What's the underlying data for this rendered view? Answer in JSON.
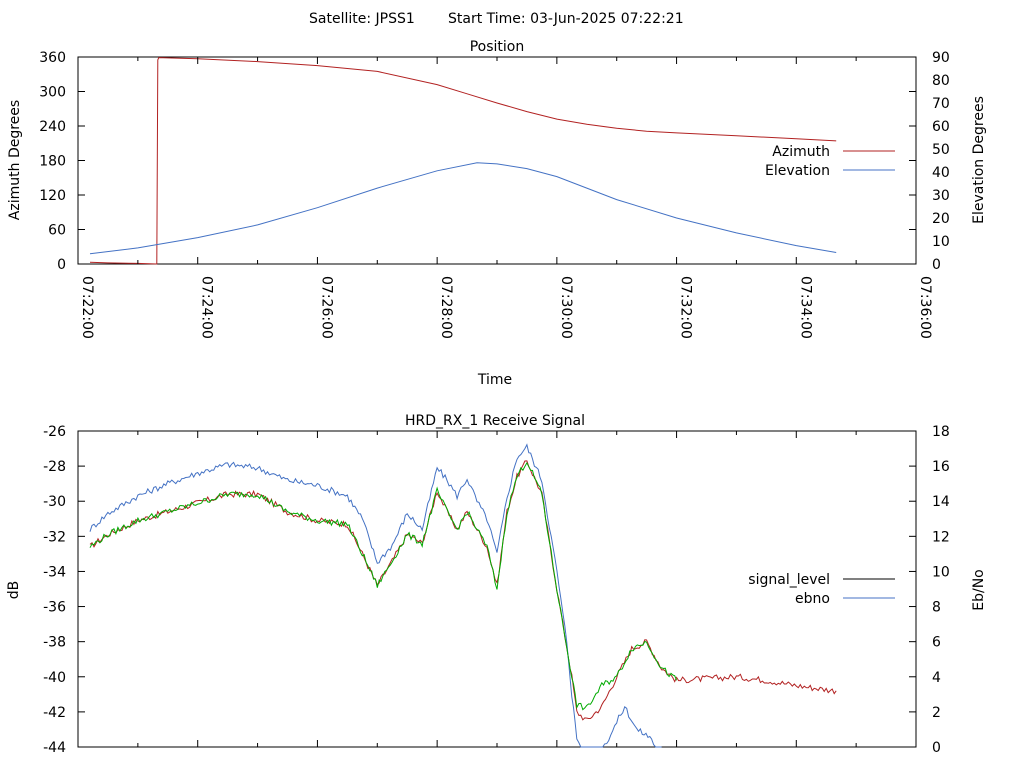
{
  "header": {
    "satellite": "Satellite: JPSS1",
    "start_time": "Start Time: 03-Jun-2025 07:22:21"
  },
  "chart_data": [
    {
      "type": "line",
      "title": "Position",
      "xlabel": "Time",
      "ylabel": "Azimuth Degrees",
      "y2label": "Elevation Degrees",
      "xlim": [
        "07:22:00",
        "07:36:00"
      ],
      "ylim": [
        0,
        360
      ],
      "y2lim": [
        0,
        90
      ],
      "x_ticks": [
        "07:22:00",
        "07:24:00",
        "07:26:00",
        "07:28:00",
        "07:30:00",
        "07:32:00",
        "07:34:00",
        "07:36:00"
      ],
      "y_ticks": [
        "0",
        "60",
        "120",
        "180",
        "240",
        "300",
        "360"
      ],
      "y2_ticks": [
        "0",
        "10",
        "20",
        "30",
        "40",
        "50",
        "60",
        "70",
        "80",
        "90"
      ],
      "legend_position": "right",
      "series": [
        {
          "name": "Azimuth",
          "axis": "y",
          "color": "#b22222",
          "x": [
            "07:22:12",
            "07:22:30",
            "07:23:00",
            "07:23:19",
            "07:23:20",
            "07:23:21",
            "07:24:00",
            "07:25:00",
            "07:26:00",
            "07:27:00",
            "07:28:00",
            "07:28:30",
            "07:29:00",
            "07:29:30",
            "07:30:00",
            "07:30:30",
            "07:31:00",
            "07:31:30",
            "07:32:00",
            "07:33:00",
            "07:34:00",
            "07:34:40"
          ],
          "y": [
            3,
            2,
            1,
            0,
            355,
            359,
            357,
            352,
            345,
            335,
            312,
            296,
            280,
            265,
            252,
            243,
            236,
            231,
            228,
            223,
            218,
            214
          ]
        },
        {
          "name": "Elevation",
          "axis": "y2",
          "color": "#4472c4",
          "x": [
            "07:22:12",
            "07:23:00",
            "07:24:00",
            "07:25:00",
            "07:26:00",
            "07:27:00",
            "07:28:00",
            "07:28:40",
            "07:29:00",
            "07:29:30",
            "07:30:00",
            "07:30:30",
            "07:31:00",
            "07:32:00",
            "07:33:00",
            "07:34:00",
            "07:34:40"
          ],
          "y": [
            4.5,
            7,
            11.5,
            17,
            24.5,
            33,
            40.5,
            44,
            43.5,
            41.5,
            38,
            33,
            28,
            20,
            13.5,
            8,
            5
          ]
        }
      ]
    },
    {
      "type": "line",
      "title": "HRD_RX_1 Receive Signal",
      "xlabel": "",
      "ylabel": "dB",
      "y2label": "Eb/No",
      "xlim": [
        "07:22:00",
        "07:36:00"
      ],
      "ylim": [
        -44,
        -26
      ],
      "y2lim": [
        0,
        18
      ],
      "y_ticks": [
        "-26",
        "-28",
        "-30",
        "-32",
        "-34",
        "-36",
        "-38",
        "-40",
        "-42",
        "-44"
      ],
      "y2_ticks": [
        "0",
        "2",
        "4",
        "6",
        "8",
        "10",
        "12",
        "14",
        "16",
        "18"
      ],
      "legend_position": "right",
      "series": [
        {
          "name": "signal_level",
          "axis": "y",
          "color": "#b22222",
          "x": [
            "07:22:12",
            "07:22:30",
            "07:23:00",
            "07:23:30",
            "07:24:00",
            "07:24:30",
            "07:25:00",
            "07:25:30",
            "07:26:00",
            "07:26:30",
            "07:26:45",
            "07:27:00",
            "07:27:15",
            "07:27:30",
            "07:27:45",
            "07:28:00",
            "07:28:10",
            "07:28:20",
            "07:28:30",
            "07:28:40",
            "07:28:50",
            "07:29:00",
            "07:29:10",
            "07:29:20",
            "07:29:30",
            "07:29:45",
            "07:30:00",
            "07:30:10",
            "07:30:15",
            "07:30:20",
            "07:30:30",
            "07:30:45",
            "07:31:00",
            "07:31:15",
            "07:31:30",
            "07:31:45",
            "07:32:00",
            "07:32:30",
            "07:33:00",
            "07:33:30",
            "07:34:00",
            "07:34:40"
          ],
          "y": [
            -32.6,
            -31.9,
            -31.1,
            -30.6,
            -30.1,
            -29.6,
            -29.6,
            -30.6,
            -31.1,
            -31.3,
            -33.0,
            -34.8,
            -33.4,
            -31.9,
            -32.4,
            -29.4,
            -30.6,
            -31.6,
            -30.6,
            -31.6,
            -32.6,
            -34.8,
            -30.6,
            -28.6,
            -27.7,
            -29.6,
            -35.0,
            -38.3,
            -40.0,
            -42.0,
            -42.5,
            -41.7,
            -40.0,
            -38.4,
            -38.0,
            -39.5,
            -40.2,
            -40.1,
            -40.0,
            -40.2,
            -40.5,
            -40.8
          ]
        },
        {
          "name": "ebno",
          "axis": "y2",
          "color": "#4472c4",
          "x": [
            "07:22:12",
            "07:22:30",
            "07:23:00",
            "07:23:30",
            "07:24:00",
            "07:24:30",
            "07:25:00",
            "07:25:30",
            "07:26:00",
            "07:26:30",
            "07:26:45",
            "07:27:00",
            "07:27:15",
            "07:27:30",
            "07:27:45",
            "07:28:00",
            "07:28:10",
            "07:28:20",
            "07:28:30",
            "07:28:40",
            "07:28:50",
            "07:29:00",
            "07:29:10",
            "07:29:20",
            "07:29:30",
            "07:29:45",
            "07:30:00",
            "07:30:10",
            "07:30:15",
            "07:30:20",
            "07:30:32",
            "07:30:50",
            "07:31:08",
            "07:31:20",
            "07:31:35",
            "07:31:45"
          ],
          "y": [
            12.4,
            13.3,
            14.3,
            15.0,
            15.6,
            16.1,
            15.9,
            15.2,
            14.9,
            14.3,
            13.0,
            10.5,
            11.5,
            13.3,
            12.4,
            15.9,
            15.2,
            14.3,
            15.3,
            14.0,
            13.0,
            11.0,
            14.2,
            16.5,
            17.1,
            15.2,
            10.0,
            6.0,
            3.0,
            0.5,
            -1.0,
            0.3,
            2.3,
            1.0,
            0.5,
            -1.0
          ]
        },
        {
          "name": "",
          "axis": "y",
          "color": "#00aa00",
          "x": [
            "07:22:12",
            "07:22:30",
            "07:23:00",
            "07:23:30",
            "07:24:00",
            "07:24:30",
            "07:25:00",
            "07:25:30",
            "07:26:00",
            "07:26:30",
            "07:26:45",
            "07:27:00",
            "07:27:15",
            "07:27:30",
            "07:27:45",
            "07:28:00",
            "07:28:10",
            "07:28:20",
            "07:28:30",
            "07:28:40",
            "07:28:50",
            "07:29:00",
            "07:29:10",
            "07:29:20",
            "07:29:30",
            "07:29:45",
            "07:30:00",
            "07:30:10",
            "07:30:15",
            "07:30:20",
            "07:30:30",
            "07:30:45",
            "07:31:00",
            "07:31:15",
            "07:31:30",
            "07:31:45",
            "07:32:00"
          ],
          "y": [
            -32.6,
            -31.9,
            -31.1,
            -30.6,
            -30.1,
            -29.6,
            -29.6,
            -30.6,
            -31.1,
            -31.3,
            -33.0,
            -34.8,
            -33.4,
            -31.9,
            -32.4,
            -29.4,
            -30.6,
            -31.6,
            -30.6,
            -31.6,
            -32.6,
            -35.0,
            -30.6,
            -28.6,
            -27.7,
            -29.6,
            -35.0,
            -38.3,
            -40.0,
            -41.6,
            -41.8,
            -40.5,
            -40.0,
            -38.4,
            -38.0,
            -39.5,
            -40.2
          ]
        }
      ]
    }
  ]
}
